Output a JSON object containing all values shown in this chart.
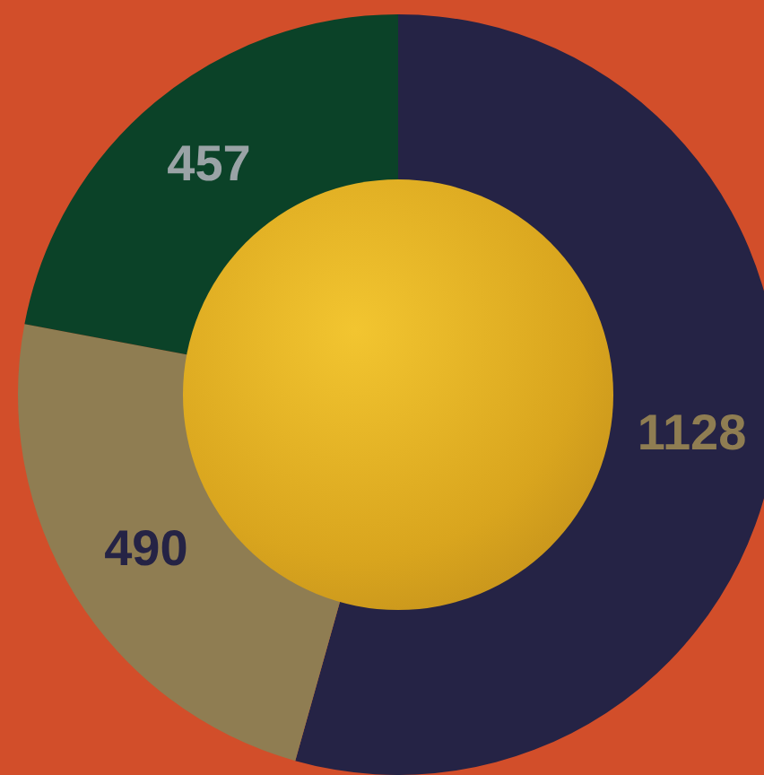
{
  "chart_data": {
    "type": "donut",
    "categories": [
      null,
      null,
      null
    ],
    "values": [
      1128,
      490,
      457
    ],
    "colors": [
      "#252345",
      "#8f7d52",
      "#0b4228"
    ],
    "data_labels": true
  }
}
